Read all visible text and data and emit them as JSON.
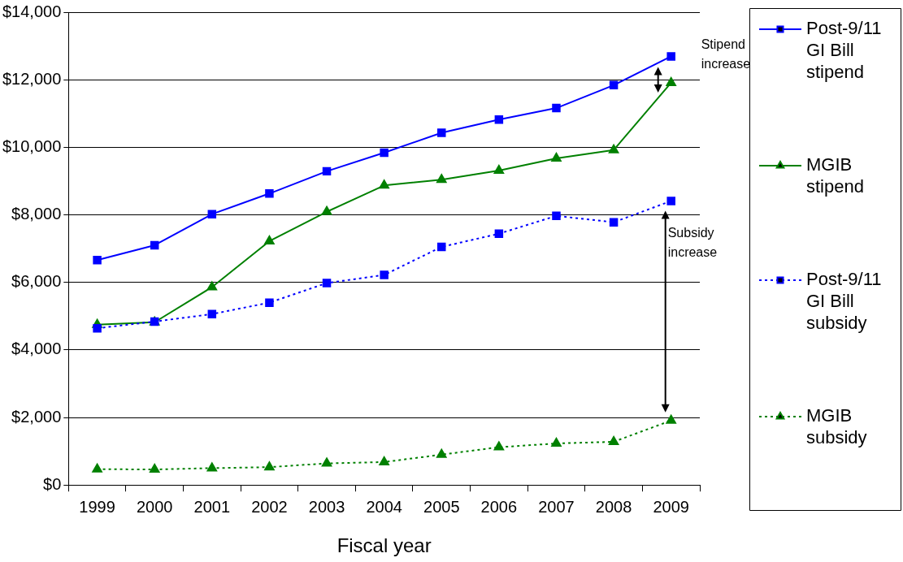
{
  "chart_data": {
    "type": "line",
    "xlabel": "Fiscal year",
    "categories": [
      "1999",
      "2000",
      "2001",
      "2002",
      "2003",
      "2004",
      "2005",
      "2006",
      "2007",
      "2008",
      "2009"
    ],
    "series": [
      {
        "name": "Post-9/11 GI Bill stipend",
        "color": "#0000ff",
        "marker": "square",
        "line_style": "solid",
        "values": [
          6660,
          7100,
          8020,
          8630,
          9290,
          9840,
          10430,
          10820,
          11160,
          11840,
          12690
        ]
      },
      {
        "name": "MGIB stipend",
        "color": "#008000",
        "marker": "triangle",
        "line_style": "solid",
        "values": [
          4750,
          4820,
          5860,
          7220,
          8090,
          8870,
          9040,
          9310,
          9670,
          9920,
          11910
        ]
      },
      {
        "name": "Post-9/11 GI Bill subsidy",
        "color": "#0000ff",
        "marker": "square",
        "line_style": "dotted",
        "values": [
          4640,
          4840,
          5060,
          5400,
          5980,
          6220,
          7050,
          7440,
          7970,
          7780,
          8410
        ]
      },
      {
        "name": "MGIB subsidy",
        "color": "#008000",
        "marker": "triangle",
        "line_style": "dotted",
        "values": [
          470,
          460,
          500,
          530,
          640,
          680,
          900,
          1120,
          1230,
          1280,
          1910
        ]
      }
    ],
    "ylim": [
      0,
      14000
    ],
    "yticks": [
      {
        "value": 0,
        "label": "$0"
      },
      {
        "value": 2000,
        "label": "$2,000"
      },
      {
        "value": 4000,
        "label": "$4,000"
      },
      {
        "value": 6000,
        "label": "$6,000"
      },
      {
        "value": 8000,
        "label": "$8,000"
      },
      {
        "value": 10000,
        "label": "$10,000"
      },
      {
        "value": 12000,
        "label": "$12,000"
      },
      {
        "value": 14000,
        "label": "$14,000"
      }
    ],
    "grid": "y",
    "legend": "right",
    "annotations": [
      "Stipend increase",
      "Subsidy increase"
    ]
  }
}
